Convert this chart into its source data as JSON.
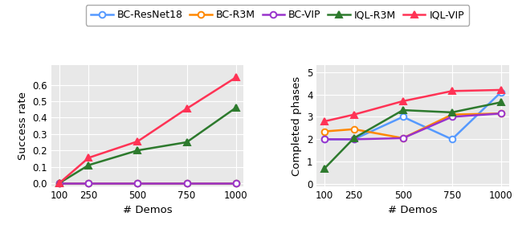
{
  "x": [
    100,
    250,
    500,
    750,
    1000
  ],
  "left_plot": {
    "ylabel": "Success rate",
    "xlabel": "# Demos",
    "ylim": [
      -0.02,
      0.72
    ],
    "yticks": [
      0.0,
      0.1,
      0.2,
      0.3,
      0.4,
      0.5,
      0.6
    ],
    "series": {
      "BC-ResNet18": {
        "values": [
          0.0,
          0.0,
          0.0,
          0.0,
          0.0
        ],
        "color": "#5599ff",
        "marker": "o"
      },
      "BC-R3M": {
        "values": [
          0.0,
          0.0,
          0.0,
          0.0,
          0.0
        ],
        "color": "#ff8800",
        "marker": "o"
      },
      "BC-VIP": {
        "values": [
          0.0,
          0.0,
          0.0,
          0.0,
          0.0
        ],
        "color": "#9933cc",
        "marker": "o"
      },
      "IQL-R3M": {
        "values": [
          0.0,
          0.11,
          0.2,
          0.25,
          0.46
        ],
        "color": "#2d7a2d",
        "marker": "^"
      },
      "IQL-VIP": {
        "values": [
          0.0,
          0.155,
          0.255,
          0.455,
          0.645
        ],
        "color": "#ff3355",
        "marker": "^"
      }
    }
  },
  "right_plot": {
    "ylabel": "Completed phases",
    "xlabel": "# Demos",
    "ylim": [
      -0.1,
      5.3
    ],
    "yticks": [
      0,
      1,
      2,
      3,
      4,
      5
    ],
    "series": {
      "BC-ResNet18": {
        "values": [
          2.0,
          2.0,
          3.0,
          2.0,
          4.1
        ],
        "color": "#5599ff",
        "marker": "o"
      },
      "BC-R3M": {
        "values": [
          2.35,
          2.45,
          2.05,
          3.1,
          3.15
        ],
        "color": "#ff8800",
        "marker": "o"
      },
      "BC-VIP": {
        "values": [
          2.0,
          2.0,
          2.05,
          3.0,
          3.15
        ],
        "color": "#9933cc",
        "marker": "o"
      },
      "IQL-R3M": {
        "values": [
          0.7,
          2.05,
          3.3,
          3.2,
          3.65
        ],
        "color": "#2d7a2d",
        "marker": "^"
      },
      "IQL-VIP": {
        "values": [
          2.8,
          3.1,
          3.7,
          4.15,
          4.2
        ],
        "color": "#ff3355",
        "marker": "^"
      }
    }
  },
  "legend_order": [
    "BC-ResNet18",
    "BC-R3M",
    "BC-VIP",
    "IQL-R3M",
    "IQL-VIP"
  ],
  "plot_bg_color": "#e8e8e8",
  "fig_bg_color": "#ffffff",
  "grid_color": "#ffffff",
  "line_width": 1.8,
  "marker_size": 5.5
}
